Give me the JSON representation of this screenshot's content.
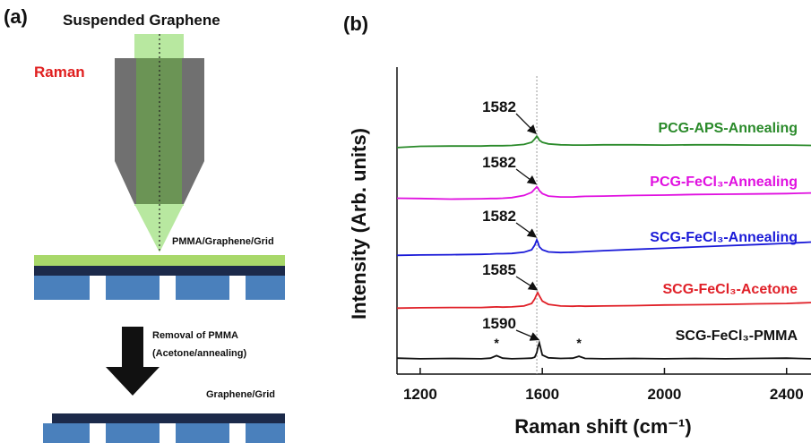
{
  "diagram": {
    "panel_label": "(a)",
    "title": "Suspended Graphene",
    "laser": "Raman",
    "stack_label": "PMMA/Graphene/Grid",
    "step": [
      "Removal of PMMA",
      "(Acetone/annealing)"
    ],
    "result_label": "Graphene/Grid"
  },
  "chart_data": {
    "type": "line",
    "panel_label": "(b)",
    "x_label": "Raman shift (cm⁻¹)",
    "y_label": "Intensity (Arb. units)",
    "xlim": [
      1124,
      2480
    ],
    "xticks": [
      1200,
      1600,
      2000,
      2400
    ],
    "ylim": [
      0,
      10
    ],
    "vline": 1582,
    "x": [
      1124,
      1200,
      1300,
      1400,
      1430,
      1450,
      1470,
      1500,
      1540,
      1565,
      1575,
      1582,
      1585,
      1590,
      1600,
      1620,
      1660,
      1700,
      1720,
      1740,
      1800,
      1900,
      2000,
      2100,
      2200,
      2300,
      2400,
      2480
    ],
    "series": [
      {
        "name": "PCG-APS-Annealing",
        "color": "#2a8a2a",
        "peak": 1582,
        "values": [
          7.38,
          7.42,
          7.43,
          7.43,
          7.44,
          7.44,
          7.44,
          7.45,
          7.48,
          7.55,
          7.66,
          7.75,
          7.71,
          7.62,
          7.55,
          7.5,
          7.47,
          7.46,
          7.46,
          7.46,
          7.47,
          7.47,
          7.46,
          7.47,
          7.47,
          7.46,
          7.46,
          7.45
        ]
      },
      {
        "name": "PCG-FeCl₃-Annealing",
        "color": "#e010e0",
        "peak": 1582,
        "values": [
          5.73,
          5.72,
          5.7,
          5.71,
          5.72,
          5.72,
          5.73,
          5.75,
          5.82,
          5.92,
          6.03,
          6.1,
          6.07,
          5.98,
          5.88,
          5.8,
          5.77,
          5.77,
          5.78,
          5.79,
          5.8,
          5.82,
          5.83,
          5.85,
          5.86,
          5.87,
          5.88,
          5.9
        ]
      },
      {
        "name": "SCG-FeCl₃-Annealing",
        "color": "#1a1ad8",
        "peak": 1582,
        "values": [
          3.87,
          3.88,
          3.89,
          3.9,
          3.91,
          3.92,
          3.92,
          3.93,
          3.97,
          4.05,
          4.2,
          4.37,
          4.3,
          4.15,
          4.05,
          3.98,
          3.96,
          3.97,
          3.98,
          3.99,
          4.02,
          4.06,
          4.1,
          4.14,
          4.18,
          4.22,
          4.26,
          4.3
        ]
      },
      {
        "name": "SCG-FeCl₃-Acetone",
        "color": "#e02028",
        "peak": 1585,
        "values": [
          2.15,
          2.16,
          2.17,
          2.17,
          2.18,
          2.19,
          2.18,
          2.19,
          2.22,
          2.3,
          2.45,
          2.6,
          2.65,
          2.55,
          2.38,
          2.27,
          2.22,
          2.21,
          2.22,
          2.21,
          2.22,
          2.23,
          2.25,
          2.26,
          2.27,
          2.29,
          2.3,
          2.33
        ]
      },
      {
        "name": "SCG-FeCl₃-PMMA",
        "color": "#111111",
        "peak": 1590,
        "values": [
          0.52,
          0.5,
          0.51,
          0.5,
          0.52,
          0.6,
          0.52,
          0.5,
          0.51,
          0.52,
          0.55,
          0.7,
          0.85,
          1.02,
          0.62,
          0.53,
          0.51,
          0.52,
          0.58,
          0.51,
          0.5,
          0.51,
          0.5,
          0.51,
          0.5,
          0.51,
          0.52,
          0.5
        ]
      }
    ],
    "annotations": [
      "*",
      "*"
    ]
  }
}
